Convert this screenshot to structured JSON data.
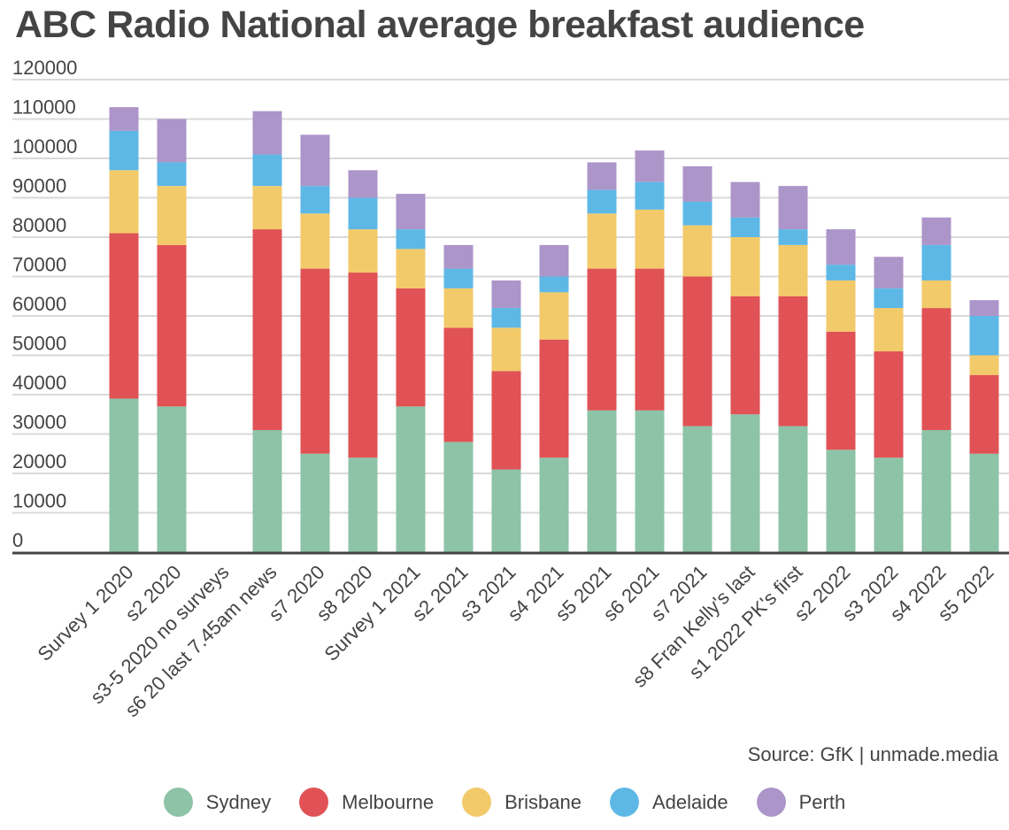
{
  "chart_data": {
    "type": "bar",
    "stacked": true,
    "title": "ABC Radio National average breakfast audience",
    "source": "Source: GfK | unmade.media",
    "xlabel": "",
    "ylabel": "",
    "ylim": [
      0,
      120000
    ],
    "yticks": [
      "0",
      "10000",
      "20000",
      "30000",
      "40000",
      "50000",
      "60000",
      "70000",
      "80000",
      "90000",
      "100000",
      "110000",
      "120000"
    ],
    "grid": true,
    "legend_position": "bottom",
    "categories": [
      "Survey 1 2020",
      "s2 2020",
      "s3-5 2020 no surveys",
      "s6 20 last 7.45am news",
      "s7 2020",
      "s8 2020",
      "Survey 1 2021",
      "s2 2021",
      "s3 2021",
      "s4 2021",
      "s5 2021",
      "s6 2021",
      "s7 2021",
      "s8 Fran Kelly's last",
      "s1 2022 PK's first",
      "s2 2022",
      "s3 2022",
      "s4 2022",
      "s5 2022"
    ],
    "series": [
      {
        "name": "Sydney",
        "color": "#8dc3a7",
        "values": [
          39000,
          37000,
          0,
          31000,
          25000,
          24000,
          37000,
          28000,
          21000,
          24000,
          36000,
          36000,
          32000,
          35000,
          32000,
          26000,
          24000,
          31000,
          25000
        ]
      },
      {
        "name": "Melbourne",
        "color": "#e05255",
        "values": [
          42000,
          41000,
          0,
          51000,
          47000,
          47000,
          30000,
          29000,
          25000,
          30000,
          36000,
          36000,
          38000,
          30000,
          33000,
          30000,
          27000,
          31000,
          20000
        ]
      },
      {
        "name": "Brisbane",
        "color": "#f2ca6a",
        "values": [
          16000,
          15000,
          0,
          11000,
          14000,
          11000,
          10000,
          10000,
          11000,
          12000,
          14000,
          15000,
          13000,
          15000,
          13000,
          13000,
          11000,
          7000,
          5000
        ]
      },
      {
        "name": "Adelaide",
        "color": "#5db8e6",
        "values": [
          10000,
          6000,
          0,
          8000,
          7000,
          8000,
          5000,
          5000,
          5000,
          4000,
          6000,
          7000,
          6000,
          5000,
          4000,
          4000,
          5000,
          9000,
          10000
        ]
      },
      {
        "name": "Perth",
        "color": "#ac95c9",
        "values": [
          6000,
          11000,
          0,
          11000,
          13000,
          7000,
          9000,
          6000,
          7000,
          8000,
          7000,
          8000,
          9000,
          9000,
          11000,
          9000,
          8000,
          7000,
          4000
        ]
      }
    ]
  }
}
